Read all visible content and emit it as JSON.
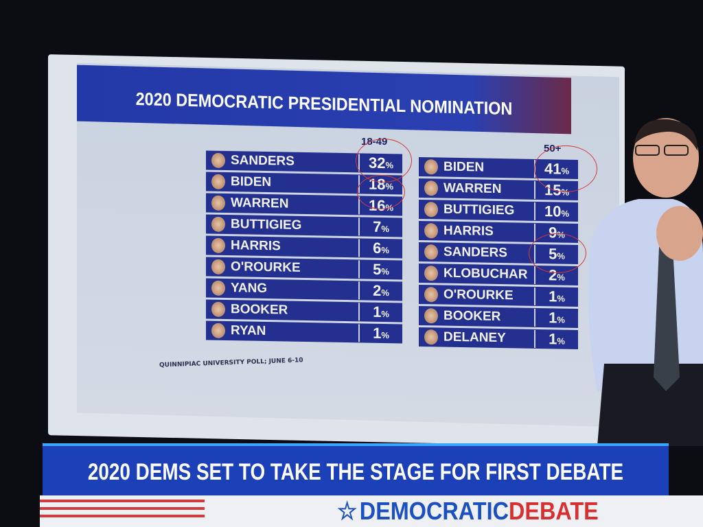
{
  "board": {
    "title": "2020 DEMOCRATIC PRESIDENTIAL NOMINATION",
    "source": "QUINNIPIAC UNIVERSITY POLL; JUNE 6-10",
    "left_table": {
      "header": "18-49",
      "rows": [
        {
          "name": "SANDERS",
          "value": "32",
          "unit": "%"
        },
        {
          "name": "BIDEN",
          "value": "18",
          "unit": "%"
        },
        {
          "name": "WARREN",
          "value": "16",
          "unit": "%"
        },
        {
          "name": "BUTTIGIEG",
          "value": "7",
          "unit": "%"
        },
        {
          "name": "HARRIS",
          "value": "6",
          "unit": "%"
        },
        {
          "name": "O'ROURKE",
          "value": "5",
          "unit": "%"
        },
        {
          "name": "YANG",
          "value": "2",
          "unit": "%"
        },
        {
          "name": "BOOKER",
          "value": "1",
          "unit": "%"
        },
        {
          "name": "RYAN",
          "value": "1",
          "unit": "%"
        }
      ]
    },
    "right_table": {
      "header": "50+",
      "rows": [
        {
          "name": "BIDEN",
          "value": "41",
          "unit": "%"
        },
        {
          "name": "WARREN",
          "value": "15",
          "unit": "%"
        },
        {
          "name": "BUTTIGIEG",
          "value": "10",
          "unit": "%"
        },
        {
          "name": "HARRIS",
          "value": "9",
          "unit": "%"
        },
        {
          "name": "SANDERS",
          "value": "5",
          "unit": "%"
        },
        {
          "name": "KLOBUCHAR",
          "value": "2",
          "unit": "%"
        },
        {
          "name": "O'ROURKE",
          "value": "1",
          "unit": "%"
        },
        {
          "name": "BOOKER",
          "value": "1",
          "unit": "%"
        },
        {
          "name": "DELANEY",
          "value": "1",
          "unit": "%"
        }
      ]
    },
    "annotation_color": "#d23a3a"
  },
  "lower_third": {
    "headline": "2020 DEMS SET TO TAKE THE STAGE FOR FIRST DEBATE",
    "brand_part1": "DEMOCRATIC",
    "brand_part2": "DEBATE",
    "star_icon": "star-icon"
  },
  "colors": {
    "row_blue": "#24308f",
    "banner_blue": "#1c40b8",
    "accent_red": "#d83030"
  }
}
